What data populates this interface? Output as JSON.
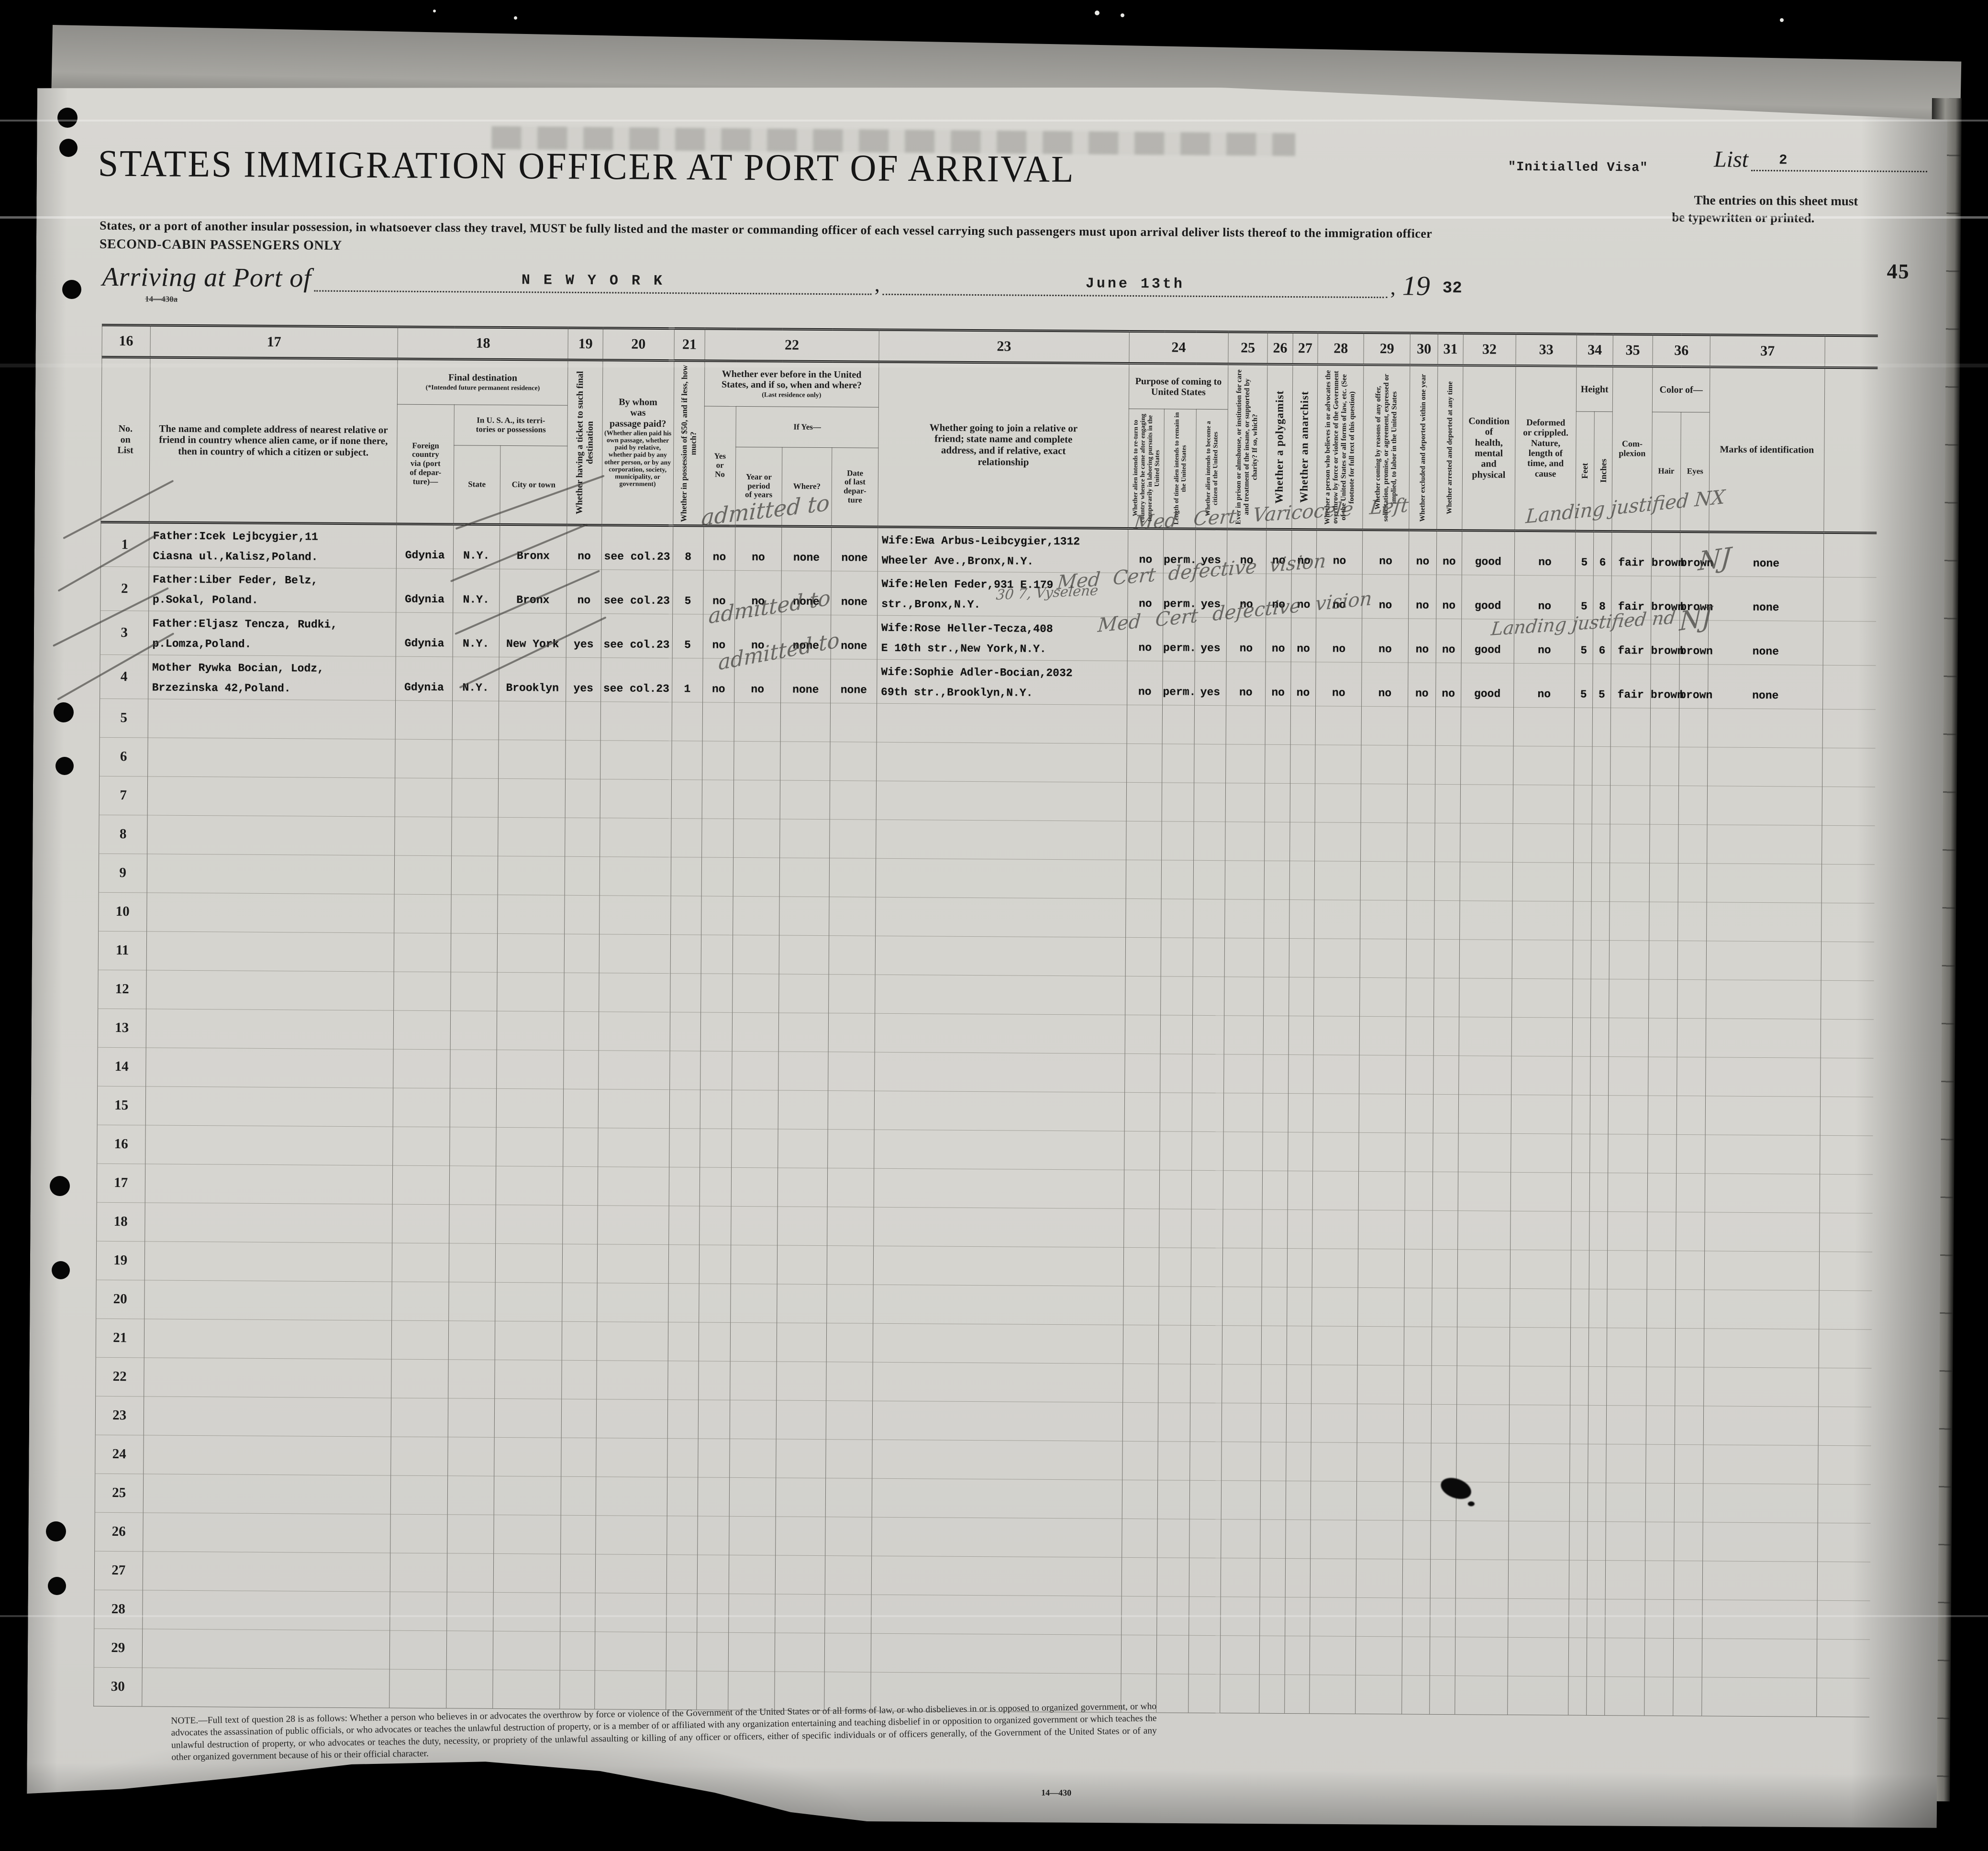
{
  "page": {
    "title": "STATES IMMIGRATION OFFICER AT PORT OF ARRIVAL",
    "subtitle": "States, or a port of another insular possession, in whatsoever class they travel, MUST be fully listed and the master or commanding officer of each vessel carrying such passengers must upon arrival deliver lists thereof to the immigration officer",
    "cabin_note": "SECOND-CABIN PASSENGERS ONLY",
    "visa_note": "\"Initialled Visa\"",
    "list_label": "List",
    "list_number": "2",
    "typed_note_line1": "The entries on this sheet must",
    "typed_note_line2": "be typewritten or printed.",
    "page_number": "45",
    "form_code_top": "14—430a",
    "form_code_bottom": "14—430",
    "arrival": {
      "label": "Arriving at Port of",
      "port": "N E W      Y O R K",
      "comma1": ",",
      "date": "June 13th",
      "comma2": ",",
      "year_printed": "19",
      "year_typed": "32"
    }
  },
  "table": {
    "col_numbers": [
      "16",
      "17",
      "18",
      "19",
      "20",
      "21",
      "22",
      "23",
      "24",
      "25",
      "26",
      "27",
      "28",
      "29",
      "30",
      "31",
      "32",
      "33",
      "34",
      "35",
      "36",
      "37"
    ],
    "headers": {
      "no_on_list": "No.\non\nList",
      "name_address": "The name and complete address of nearest relative or friend in country whence alien came, or if none there, then in country of which a citizen or subject.",
      "final_destination": "Final destination",
      "final_destination_sub": "(*Intended future permanent residence)",
      "foreign_country": "Foreign\ncountry\nvia (port\nof depar-\nture)—",
      "in_usa": "In U. S. A., its terri-\ntories or possessions",
      "state": "State",
      "city": "City or town",
      "ticket": "Whether having a ticket\nto such final destination",
      "passage": "By whom\nwas\npassage paid?",
      "passage_sub": "(Whether alien paid his own passage, whether paid by relative, whether paid by any other person, or by any corporation, society, municipality, or government)",
      "possession": "Whether in possession of $50,\nand if less, how much?",
      "ever_before": "Whether ever before in the United\nStates, and if so, when and where?",
      "ever_before_sub": "(Last residence only)",
      "yes_no": "Yes\nor\nNo",
      "if_yes": "If Yes—",
      "year_period": "Year or\nperiod\nof years",
      "where": "Where?",
      "date_last": "Date\nof last\ndepar-\nture",
      "join_relative": "Whether going to join a relative or\nfriend; state name and complete\naddress, and if relative, exact\nrelationship",
      "purpose": "Purpose of coming to\nUnited States",
      "return_whence": "Whether alien intends to re-turn to country whence he came after engaging temporarily in laboring pursuits in the United States",
      "length_remain": "Length of time alien intends to remain in the United States",
      "become_citizen": "Whether alien intends to become a citizen of the United States",
      "prison": "Ever in prison or almshouse, or institution for care and treatment of the insane, or supported by charity? If so, which?",
      "polygamist": "Whether a polygamist",
      "anarchist": "Whether an anarchist",
      "overthrow": "Whether a person who believes in or advocates the overthrow by force or violence of the Government of the United States or all forms of law, etc. (See footnote for full text of this question)",
      "labor_offer": "Whether coming by reasons of any offer, solicitation, promise, or agreement, expressed or implied, to labor in the United States",
      "excluded": "Whether excluded and deported within one year",
      "arrested": "Whether arrested and deported at any time",
      "health": "Condition\nof\nhealth,\nmental\nand\nphysical",
      "deformed": "Deformed\nor crippled.\nNature,\nlength of\ntime, and\ncause",
      "height": "Height",
      "feet": "Feet",
      "inches": "Inches",
      "complexion": "Com-\nplexion",
      "color_of": "Color of—",
      "hair": "Hair",
      "eyes": "Eyes",
      "marks": "Marks of identification"
    },
    "rows": [
      {
        "no": "1",
        "name_address": [
          "Father:Icek Lejbcygier,11",
          "Ciasna ul.,Kalisz,Poland."
        ],
        "foreign_country": "Gdynia",
        "state": "N.Y.",
        "city": "Bronx",
        "ticket": "no",
        "passage": "see col.23",
        "money": "8",
        "ever_before": "no",
        "year_period": "no",
        "where": "none",
        "date_last": "none",
        "join": [
          "Wife:Ewa Arbus-Leibcygier,1312",
          "Wheeler Ave.,Bronx,N.Y."
        ],
        "return_whence": "no",
        "length_remain": "perm.",
        "become_citizen": "yes",
        "prison": "no",
        "polygamist": "no",
        "anarchist": "no",
        "overthrow": "no",
        "labor_offer": "no",
        "excluded": "no",
        "arrested": "no",
        "health": "good",
        "deformed": "no",
        "feet": "5",
        "inches": "6",
        "complexion": "fair",
        "hair": "brown",
        "eyes": "brown",
        "marks": "none"
      },
      {
        "no": "2",
        "name_address": [
          "Father:Liber Feder, Belz,",
          "p.Sokal, Poland."
        ],
        "foreign_country": "Gdynia",
        "state": "N.Y.",
        "city": "Bronx",
        "ticket": "no",
        "passage": "see col.23",
        "money": "5",
        "ever_before": "no",
        "year_period": "no",
        "where": "none",
        "date_last": "none",
        "join": [
          "Wife:Helen Feder,931 E.179",
          "str.,Bronx,N.Y."
        ],
        "return_whence": "no",
        "length_remain": "perm.",
        "become_citizen": "yes",
        "prison": "no",
        "polygamist": "no",
        "anarchist": "no",
        "overthrow": "no",
        "labor_offer": "no",
        "excluded": "no",
        "arrested": "no",
        "health": "good",
        "deformed": "no",
        "feet": "5",
        "inches": "8",
        "complexion": "fair",
        "hair": "brown",
        "eyes": "brown",
        "marks": "none"
      },
      {
        "no": "3",
        "name_address": [
          "Father:Eljasz Tencza, Rudki,",
          "p.Lomza,Poland."
        ],
        "foreign_country": "Gdynia",
        "state": "N.Y.",
        "city": "New York",
        "ticket": "yes",
        "passage": "see col.23",
        "money": "5",
        "ever_before": "no",
        "year_period": "no",
        "where": "none",
        "date_last": "none",
        "join": [
          "Wife:Rose Heller-Tecza,408",
          "E 10th str.,New York,N.Y."
        ],
        "return_whence": "no",
        "length_remain": "perm.",
        "become_citizen": "yes",
        "prison": "no",
        "polygamist": "no",
        "anarchist": "no",
        "overthrow": "no",
        "labor_offer": "no",
        "excluded": "no",
        "arrested": "no",
        "health": "good",
        "deformed": "no",
        "feet": "5",
        "inches": "6",
        "complexion": "fair",
        "hair": "brown",
        "eyes": "brown",
        "marks": "none"
      },
      {
        "no": "4",
        "name_address": [
          "Mother Rywka Bocian, Lodz,",
          "Brzezinska 42,Poland."
        ],
        "foreign_country": "Gdynia",
        "state": "N.Y.",
        "city": "Brooklyn",
        "ticket": "yes",
        "passage": "see col.23",
        "money": "1",
        "ever_before": "no",
        "year_period": "no",
        "where": "none",
        "date_last": "none",
        "join": [
          "Wife:Sophie Adler-Bocian,2032",
          "69th str.,Brooklyn,N.Y."
        ],
        "return_whence": "no",
        "length_remain": "perm.",
        "become_citizen": "yes",
        "prison": "no",
        "polygamist": "no",
        "anarchist": "no",
        "overthrow": "no",
        "labor_offer": "no",
        "excluded": "no",
        "arrested": "no",
        "health": "good",
        "deformed": "no",
        "feet": "5",
        "inches": "5",
        "complexion": "fair",
        "hair": "brown",
        "eyes": "brown",
        "marks": "none"
      }
    ],
    "empty_row_numbers": [
      "5",
      "6",
      "7",
      "8",
      "9",
      "10",
      "11",
      "12",
      "13",
      "14",
      "15",
      "16",
      "17",
      "18",
      "19",
      "20",
      "21",
      "22",
      "23",
      "24",
      "25",
      "26",
      "27",
      "28",
      "29",
      "30"
    ]
  },
  "annotations": {
    "admitted_1": "admitted to",
    "med_1": "Med Cert Varicocele Left",
    "landing_1": "Landing justified NX",
    "initials_1": "NJ",
    "med_2": "Med Cert defective vision",
    "note_2": "30 7, Vyselene",
    "admitted_3": "admitted to",
    "med_3": "Med Cert defective vision",
    "landing_3": "Landing justified nd",
    "initials_3": "NJ",
    "admitted_4": "admitted to"
  },
  "footnote": "NOTE.—Full text of question 28 is as follows: Whether a person who believes in or advocates the overthrow by force or violence of the Government of the United States or of all forms of law, or who disbelieves in or is opposed to organized government, or who advocates the assassination of public officials, or who advocates or teaches the unlawful destruction of property, or is a member of or affiliated with any organization entertaining and teaching disbelief in or opposition to organized government or which teaches the unlawful destruction of property, or who advocates or teaches the duty, necessity, or propriety of the unlawful assaulting or killing of any officer or officers, either of specific individuals or of officers generally, of the Government of the United States or of any other organized government because of his or their official character.",
  "colors": {
    "paper": "#d6d5d0",
    "ink": "#1c1c1c",
    "pencil": "#5a5955",
    "background": "#000000"
  }
}
